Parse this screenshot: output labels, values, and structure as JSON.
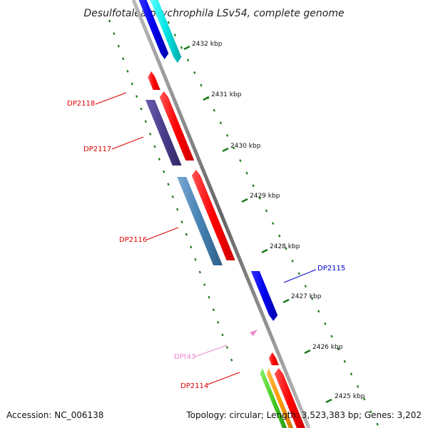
{
  "title": "Desulfotalea psychrophila LSv54, complete genome",
  "footer": {
    "accession": "Accession: NC_006138",
    "summary": "Topology: circular; Length: 3,523,383 bp; Genes: 3,202"
  },
  "ticks": [
    {
      "label": "2432 kbp"
    },
    {
      "label": "2431 kbp"
    },
    {
      "label": "2430 kbp"
    },
    {
      "label": "2429 kbp"
    },
    {
      "label": "2428 kbp"
    },
    {
      "label": "2427 kbp"
    },
    {
      "label": "2426 kbp"
    },
    {
      "label": "2425 kbp"
    }
  ],
  "gene_labels": [
    {
      "id": "DP2118",
      "color": "#dd0000"
    },
    {
      "id": "DP2117",
      "color": "#dd0000"
    },
    {
      "id": "DP2116",
      "color": "#dd0000"
    },
    {
      "id": "DP2115",
      "color": "#0000cc"
    },
    {
      "id": "DPt43",
      "color": "#ee88cc"
    },
    {
      "id": "DP2114",
      "color": "#dd0000"
    }
  ],
  "colors": {
    "backbone": "#888888",
    "tick_track": "#1a7a1a",
    "feature_red": "#ff0000",
    "feature_blue": "#0000ee",
    "feature_cyan": "#00e5e5",
    "feature_purple": "#483d8b",
    "feature_steelblue": "#4682b4",
    "feature_pink": "#ee88cc",
    "feature_green": "#44cc22",
    "feature_orange": "#ff9900"
  }
}
